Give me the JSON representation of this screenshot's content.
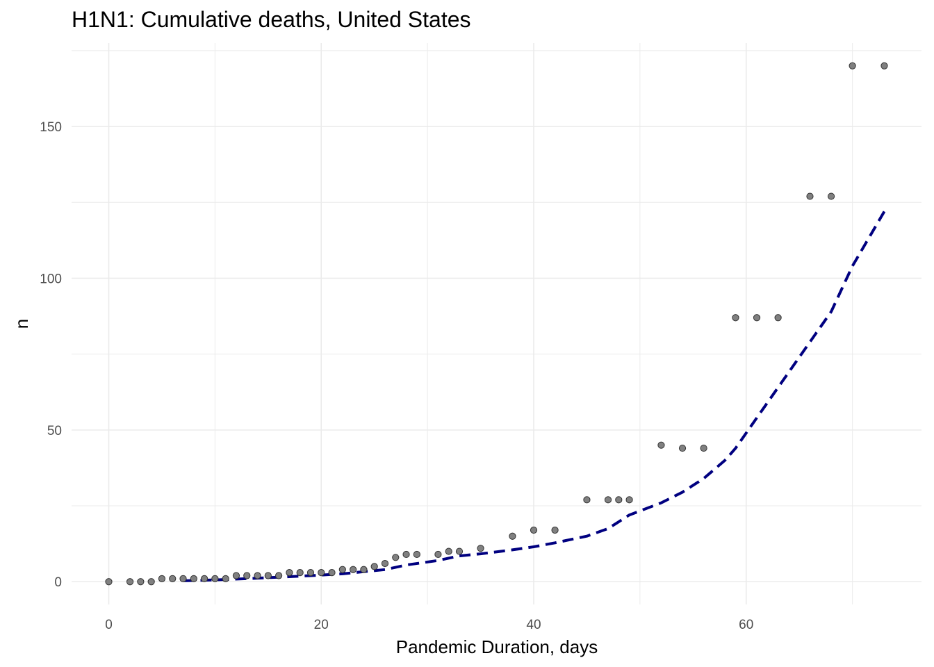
{
  "chart_data": {
    "type": "scatter",
    "title": "H1N1: Cumulative deaths, United States",
    "xlabel": "Pandemic Duration, days",
    "ylabel": "n",
    "xlim": [
      -3.5,
      76.5
    ],
    "ylim": [
      -7.5,
      177.5
    ],
    "x_ticks": [
      0,
      20,
      40,
      60
    ],
    "y_ticks": [
      0,
      50,
      100,
      150
    ],
    "grid": true,
    "colors": {
      "points": "#808080",
      "point_stroke": "#333333",
      "trend": "#000080",
      "grid": "#ebebeb"
    },
    "series": [
      {
        "kind": "points",
        "x": [
          0,
          2,
          3,
          4,
          5,
          6,
          7,
          8,
          9,
          10,
          11,
          12,
          13,
          14,
          15,
          16,
          17,
          18,
          19,
          20,
          21,
          22,
          23,
          24,
          25,
          26,
          27,
          28,
          29,
          31,
          32,
          33,
          35,
          38,
          40,
          42,
          45,
          47,
          48,
          49,
          52,
          54,
          56,
          59,
          61,
          63,
          66,
          68,
          70,
          73
        ],
        "y": [
          0,
          0,
          0,
          0,
          1,
          1,
          1,
          1,
          1,
          1,
          1,
          2,
          2,
          2,
          2,
          2,
          3,
          3,
          3,
          3,
          3,
          4,
          4,
          4,
          5,
          6,
          8,
          9,
          9,
          9,
          10,
          10,
          11,
          15,
          17,
          17,
          27,
          27,
          27,
          27,
          45,
          44,
          44,
          87,
          87,
          87,
          127,
          127,
          170,
          170
        ]
      },
      {
        "kind": "trend",
        "style": "dashed",
        "x": [
          7,
          10,
          13,
          16,
          19,
          22,
          24,
          26,
          28,
          31,
          33,
          35,
          38,
          40,
          42,
          45,
          47,
          49,
          52,
          54,
          56,
          58,
          59,
          61,
          63,
          66,
          68,
          70,
          73
        ],
        "y": [
          0.3,
          0.6,
          1.0,
          1.5,
          2.0,
          2.6,
          3.3,
          4.0,
          5.5,
          7.0,
          8.5,
          9.2,
          10.5,
          11.5,
          12.8,
          15.0,
          17.5,
          22.0,
          26.0,
          29.5,
          34.0,
          40.0,
          44.0,
          54.0,
          64.0,
          79.0,
          89.0,
          104.0,
          122.0
        ]
      }
    ]
  }
}
